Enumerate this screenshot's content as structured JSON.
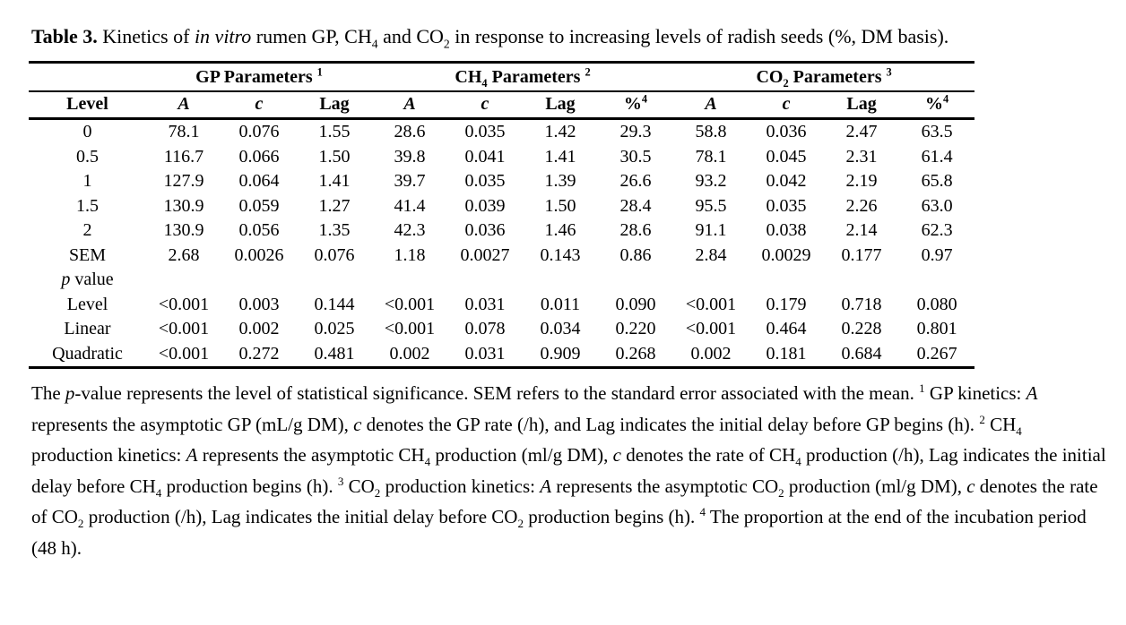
{
  "colors": {
    "text": "#000000",
    "background": "#ffffff"
  },
  "caption": {
    "segments": [
      {
        "t": "Table 3.",
        "b": true
      },
      {
        "t": " Kinetics of "
      },
      {
        "t": "in vitro",
        "i": true
      },
      {
        "t": " rumen GP, CH"
      },
      {
        "t": "4",
        "sub": true
      },
      {
        "t": " and CO"
      },
      {
        "t": "2",
        "sub": true
      },
      {
        "t": " in response to increasing levels of radish seeds (%, DM basis)."
      }
    ]
  },
  "table": {
    "group_headers": [
      {
        "span": 3,
        "segments": [
          {
            "t": "GP Parameters "
          },
          {
            "t": "1",
            "sup": true
          }
        ]
      },
      {
        "span": 4,
        "segments": [
          {
            "t": "CH"
          },
          {
            "t": "4",
            "sub": true
          },
          {
            "t": " Parameters "
          },
          {
            "t": "2",
            "sup": true
          }
        ]
      },
      {
        "span": 4,
        "segments": [
          {
            "t": "CO"
          },
          {
            "t": "2",
            "sub": true
          },
          {
            "t": " Parameters "
          },
          {
            "t": "3",
            "sup": true
          }
        ]
      }
    ],
    "column_headers": [
      {
        "segments": [
          {
            "t": "Level"
          }
        ]
      },
      {
        "segments": [
          {
            "t": "A",
            "i": true
          }
        ]
      },
      {
        "segments": [
          {
            "t": "c",
            "i": true
          }
        ]
      },
      {
        "segments": [
          {
            "t": "Lag"
          }
        ]
      },
      {
        "segments": [
          {
            "t": "A",
            "i": true
          }
        ]
      },
      {
        "segments": [
          {
            "t": "c",
            "i": true
          }
        ]
      },
      {
        "segments": [
          {
            "t": "Lag"
          }
        ]
      },
      {
        "segments": [
          {
            "t": "%"
          },
          {
            "t": "4",
            "sup": true
          }
        ]
      },
      {
        "segments": [
          {
            "t": "A",
            "i": true
          }
        ]
      },
      {
        "segments": [
          {
            "t": "c",
            "i": true
          }
        ]
      },
      {
        "segments": [
          {
            "t": "Lag"
          }
        ]
      },
      {
        "segments": [
          {
            "t": "%"
          },
          {
            "t": "4",
            "sup": true
          }
        ]
      }
    ],
    "rows": [
      {
        "label": "0",
        "values": [
          "78.1",
          "0.076",
          "1.55",
          "28.6",
          "0.035",
          "1.42",
          "29.3",
          "58.8",
          "0.036",
          "2.47",
          "63.5"
        ]
      },
      {
        "label": "0.5",
        "values": [
          "116.7",
          "0.066",
          "1.50",
          "39.8",
          "0.041",
          "1.41",
          "30.5",
          "78.1",
          "0.045",
          "2.31",
          "61.4"
        ]
      },
      {
        "label": "1",
        "values": [
          "127.9",
          "0.064",
          "1.41",
          "39.7",
          "0.035",
          "1.39",
          "26.6",
          "93.2",
          "0.042",
          "2.19",
          "65.8"
        ]
      },
      {
        "label": "1.5",
        "values": [
          "130.9",
          "0.059",
          "1.27",
          "41.4",
          "0.039",
          "1.50",
          "28.4",
          "95.5",
          "0.035",
          "2.26",
          "63.0"
        ]
      },
      {
        "label": "2",
        "values": [
          "130.9",
          "0.056",
          "1.35",
          "42.3",
          "0.036",
          "1.46",
          "28.6",
          "91.1",
          "0.038",
          "2.14",
          "62.3"
        ]
      },
      {
        "label": "SEM",
        "values": [
          "2.68",
          "0.0026",
          "0.076",
          "1.18",
          "0.0027",
          "0.143",
          "0.86",
          "2.84",
          "0.0029",
          "0.177",
          "0.97"
        ]
      },
      {
        "label": [
          {
            "t": "p",
            "i": true
          },
          {
            "t": " value"
          }
        ],
        "values": []
      },
      {
        "label": "Level",
        "values": [
          "<0.001",
          "0.003",
          "0.144",
          "<0.001",
          "0.031",
          "0.011",
          "0.090",
          "<0.001",
          "0.179",
          "0.718",
          "0.080"
        ]
      },
      {
        "label": "Linear",
        "values": [
          "<0.001",
          "0.002",
          "0.025",
          "<0.001",
          "0.078",
          "0.034",
          "0.220",
          "<0.001",
          "0.464",
          "0.228",
          "0.801"
        ]
      },
      {
        "label": "Quadratic",
        "values": [
          "<0.001",
          "0.272",
          "0.481",
          "0.002",
          "0.031",
          "0.909",
          "0.268",
          "0.002",
          "0.181",
          "0.684",
          "0.267"
        ]
      }
    ]
  },
  "footnote": {
    "segments": [
      {
        "t": "The "
      },
      {
        "t": "p",
        "i": true
      },
      {
        "t": "-value represents the level of statistical significance. SEM refers to the standard error associated with the mean. "
      },
      {
        "t": "1",
        "sup": true
      },
      {
        "t": " GP kinetics: "
      },
      {
        "t": "A",
        "i": true
      },
      {
        "t": " represents the asymptotic GP (mL/g DM), "
      },
      {
        "t": "c",
        "i": true
      },
      {
        "t": " denotes the GP rate (/h), and Lag indicates the initial delay before GP begins (h). "
      },
      {
        "t": "2",
        "sup": true
      },
      {
        "t": " CH"
      },
      {
        "t": "4",
        "sub": true
      },
      {
        "t": " production kinetics: "
      },
      {
        "t": "A",
        "i": true
      },
      {
        "t": " represents the asymptotic CH"
      },
      {
        "t": "4",
        "sub": true
      },
      {
        "t": " production (ml/g DM), "
      },
      {
        "t": "c",
        "i": true
      },
      {
        "t": " denotes the rate of CH"
      },
      {
        "t": "4",
        "sub": true
      },
      {
        "t": " production (/h), Lag indicates the initial delay before CH"
      },
      {
        "t": "4",
        "sub": true
      },
      {
        "t": " production begins (h). "
      },
      {
        "t": "3",
        "sup": true
      },
      {
        "t": " CO"
      },
      {
        "t": "2",
        "sub": true
      },
      {
        "t": " production kinetics: "
      },
      {
        "t": "A",
        "i": true
      },
      {
        "t": " represents the asymptotic CO"
      },
      {
        "t": "2",
        "sub": true
      },
      {
        "t": " production (ml/g DM), "
      },
      {
        "t": "c",
        "i": true
      },
      {
        "t": " denotes the rate of CO"
      },
      {
        "t": "2",
        "sub": true
      },
      {
        "t": " production (/h), Lag indicates the initial delay before CO"
      },
      {
        "t": "2",
        "sub": true
      },
      {
        "t": " production begins (h). "
      },
      {
        "t": "4",
        "sup": true
      },
      {
        "t": " The proportion at the end of the incubation period (48 h)."
      }
    ]
  }
}
